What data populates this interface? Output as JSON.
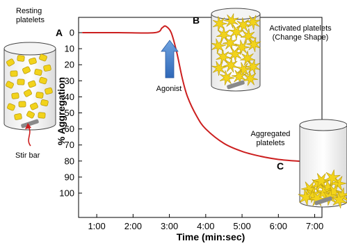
{
  "chart_data": {
    "type": "line",
    "xlabel": "Time (min:sec)",
    "ylabel": "% Aggregation",
    "x_ticks": [
      "1:00",
      "2:00",
      "3:00",
      "4:00",
      "5:00",
      "6:00",
      "7:00"
    ],
    "y_ticks": [
      0,
      10,
      20,
      30,
      40,
      50,
      60,
      70,
      80,
      90,
      100
    ],
    "ylim": [
      100,
      0
    ],
    "y_inverted": true,
    "xlim_minutes": [
      0.5,
      7.2
    ],
    "series": [
      {
        "color": "#cc1f1f",
        "points": [
          {
            "t": 0.6,
            "y": 0
          },
          {
            "t": 1.6,
            "y": 0
          },
          {
            "t": 2.6,
            "y": 0
          },
          {
            "t": 2.8,
            "y": -3
          },
          {
            "t": 2.9,
            "y": -4
          },
          {
            "t": 3.05,
            "y": 0
          },
          {
            "t": 3.2,
            "y": 12
          },
          {
            "t": 3.35,
            "y": 28
          },
          {
            "t": 3.5,
            "y": 40
          },
          {
            "t": 3.75,
            "y": 52
          },
          {
            "t": 4.0,
            "y": 60
          },
          {
            "t": 4.5,
            "y": 69
          },
          {
            "t": 5.0,
            "y": 74
          },
          {
            "t": 5.5,
            "y": 77
          },
          {
            "t": 6.0,
            "y": 79
          },
          {
            "t": 6.5,
            "y": 80
          },
          {
            "t": 7.0,
            "y": 80.5
          }
        ]
      }
    ],
    "annotations": {
      "agonist": "Agonist",
      "resting_label": "Resting\nplatelets",
      "stir_bar": "Stir bar",
      "activated_label": "Activated platelets\n(Change Shape)",
      "aggregated_label": "Aggregated\nplatelets",
      "panel_a": "A",
      "panel_b": "B",
      "panel_c": "C"
    },
    "colors": {
      "curve": "#cc1f1f",
      "arrow_agonist": "#3f7fcf",
      "arrow_stir": "#cc1f1f",
      "platelet_fill": "#f2d31b",
      "platelet_stroke": "#b89a10",
      "stir_bar": "#888888"
    }
  }
}
